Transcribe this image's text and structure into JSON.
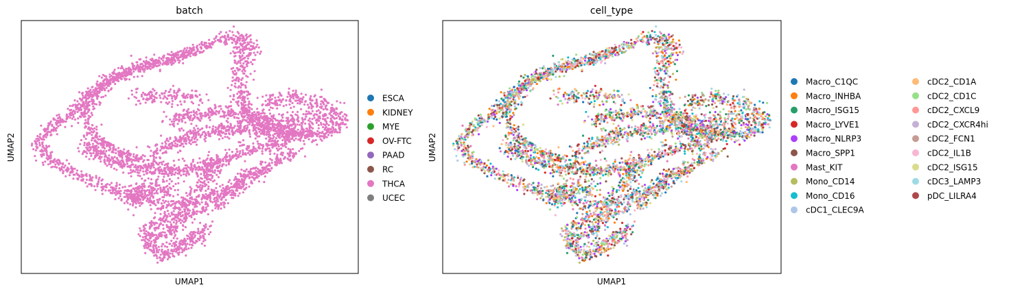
{
  "chart_data": [
    {
      "type": "scatter",
      "title": "batch",
      "xlabel": "UMAP1",
      "ylabel": "UMAP2",
      "xlim": [
        -6,
        10
      ],
      "ylim": [
        -6,
        8
      ],
      "grid": false,
      "legend_position": "right",
      "legend": [
        {
          "label": "ESCA",
          "color": "#1f77b4"
        },
        {
          "label": "KIDNEY",
          "color": "#ff7f0e"
        },
        {
          "label": "MYE",
          "color": "#2ca02c"
        },
        {
          "label": "OV-FTC",
          "color": "#d62728"
        },
        {
          "label": "PAAD",
          "color": "#9467bd"
        },
        {
          "label": "RC",
          "color": "#8c564b"
        },
        {
          "label": "THCA",
          "color": "#e377c2"
        },
        {
          "label": "UCEC",
          "color": "#7f7f7f"
        }
      ],
      "point_color": "#e377c2"
    },
    {
      "type": "scatter",
      "title": "cell_type",
      "xlabel": "UMAP1",
      "ylabel": "UMAP2",
      "xlim": [
        -6,
        10
      ],
      "ylim": [
        -6,
        8
      ],
      "grid": false,
      "legend_position": "right",
      "legend": [
        {
          "label": "Macro_C1QC",
          "color": "#1f77b4"
        },
        {
          "label": "Macro_INHBA",
          "color": "#ff7f0e"
        },
        {
          "label": "Macro_ISG15",
          "color": "#279e68"
        },
        {
          "label": "Macro_LYVE1",
          "color": "#d62728"
        },
        {
          "label": "Macro_NLRP3",
          "color": "#aa40fc"
        },
        {
          "label": "Macro_SPP1",
          "color": "#8c564b"
        },
        {
          "label": "Mast_KIT",
          "color": "#e377c2"
        },
        {
          "label": "Mono_CD14",
          "color": "#b5bd61"
        },
        {
          "label": "Mono_CD16",
          "color": "#17becf"
        },
        {
          "label": "cDC1_CLEC9A",
          "color": "#aec7e8"
        },
        {
          "label": "cDC2_CD1A",
          "color": "#ffbb78"
        },
        {
          "label": "cDC2_CD1C",
          "color": "#98df8a"
        },
        {
          "label": "cDC2_CXCL9",
          "color": "#ff9896"
        },
        {
          "label": "cDC2_CXCR4hi",
          "color": "#c5b0d5"
        },
        {
          "label": "cDC2_FCN1",
          "color": "#c49c94"
        },
        {
          "label": "cDC2_IL1B",
          "color": "#f7b6d2"
        },
        {
          "label": "cDC2_ISG15",
          "color": "#dbdb8d"
        },
        {
          "label": "cDC3_LAMP3",
          "color": "#9edae5"
        },
        {
          "label": "pDC_LILRA4",
          "color": "#ad494a"
        }
      ]
    }
  ]
}
